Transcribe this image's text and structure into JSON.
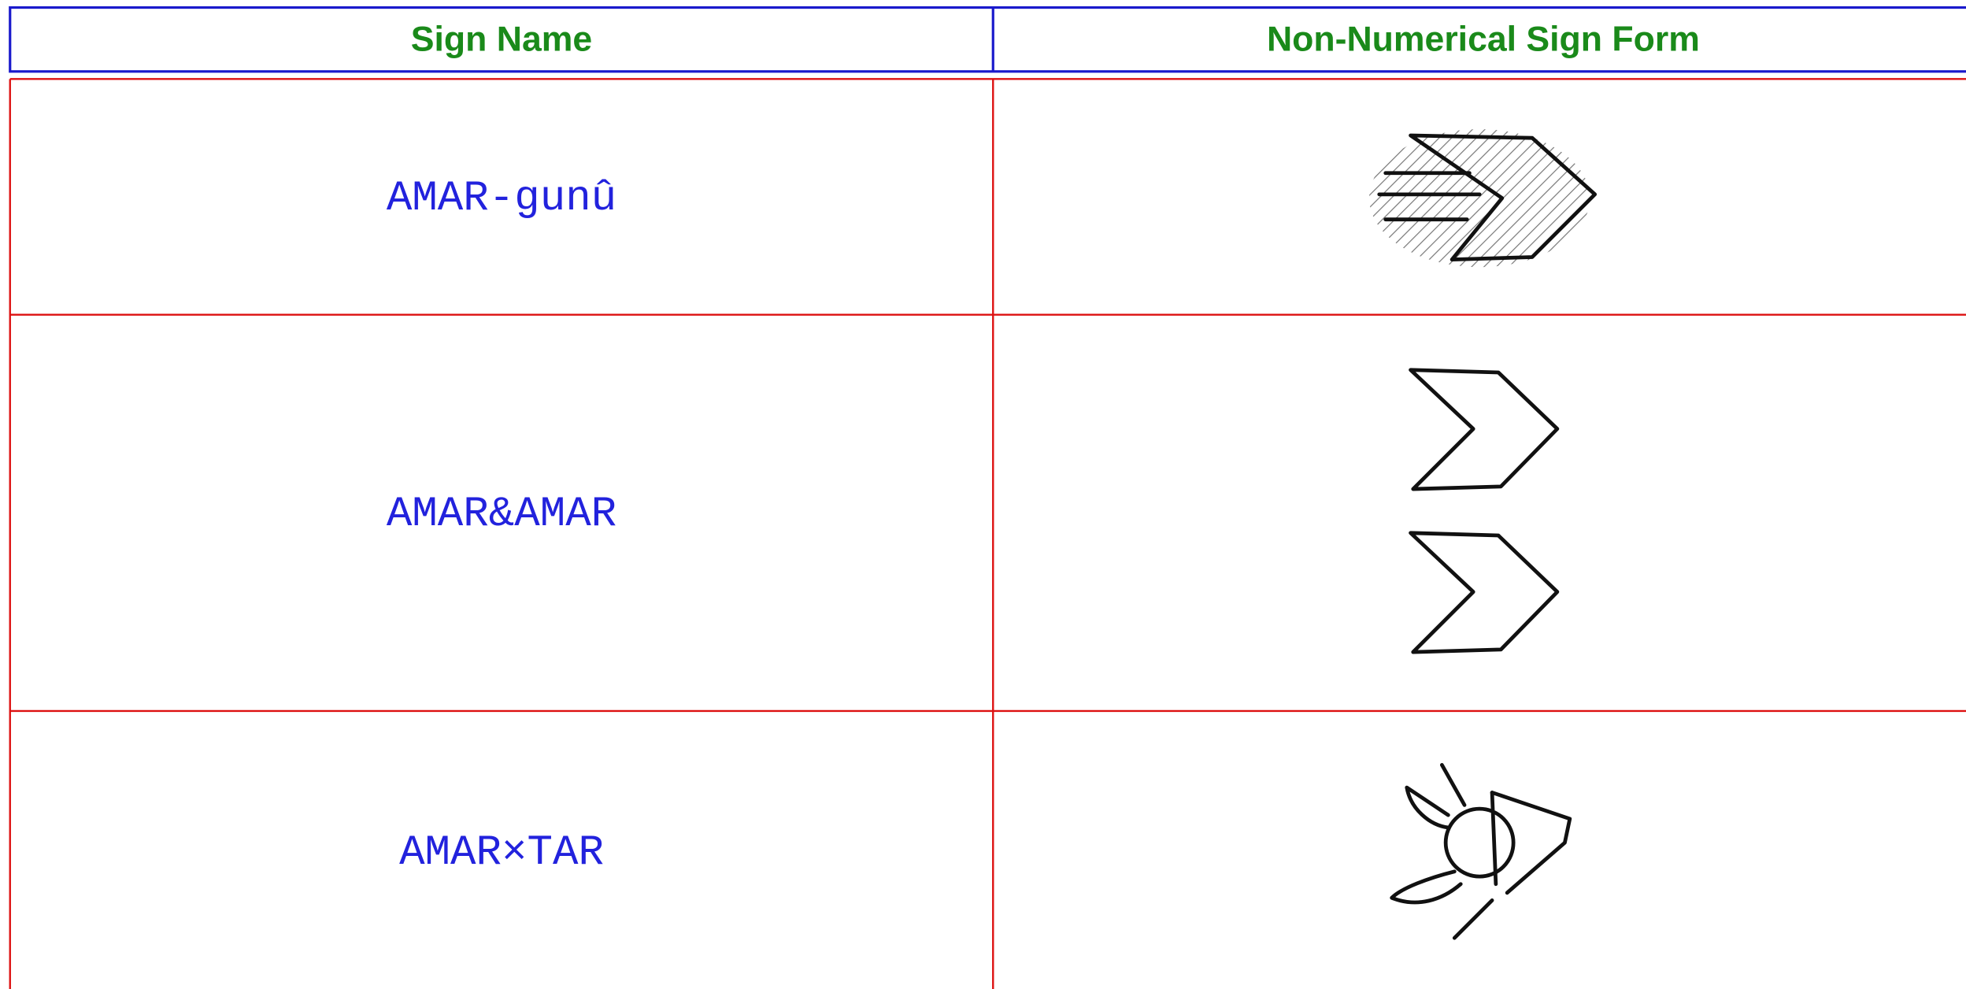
{
  "table": {
    "columns": [
      "Sign Name",
      "Non-Numerical Sign Form"
    ],
    "rows": [
      [
        "AMAR-gunû"
      ],
      [
        "AMAR&AMAR"
      ],
      [
        "AMAR×TAR"
      ]
    ]
  }
}
